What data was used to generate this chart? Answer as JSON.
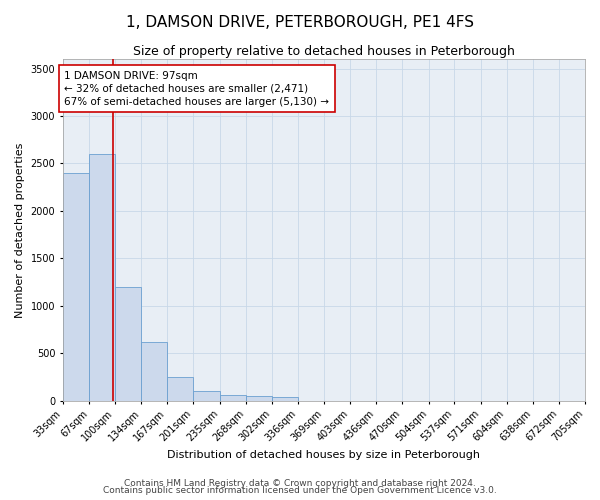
{
  "title": "1, DAMSON DRIVE, PETERBOROUGH, PE1 4FS",
  "subtitle": "Size of property relative to detached houses in Peterborough",
  "xlabel": "Distribution of detached houses by size in Peterborough",
  "ylabel": "Number of detached properties",
  "footnote1": "Contains HM Land Registry data © Crown copyright and database right 2024.",
  "footnote2": "Contains public sector information licensed under the Open Government Licence v3.0.",
  "bin_edges": [
    33,
    67,
    100,
    134,
    167,
    201,
    235,
    268,
    302,
    336,
    369,
    403,
    436,
    470,
    504,
    537,
    571,
    604,
    638,
    672,
    705
  ],
  "bar_heights": [
    2400,
    2600,
    1200,
    620,
    250,
    100,
    60,
    50,
    40,
    0,
    0,
    0,
    0,
    0,
    0,
    0,
    0,
    0,
    0,
    0
  ],
  "bar_color": "#ccd9ec",
  "bar_edgecolor": "#6a9fd0",
  "property_line_x": 97,
  "property_line_color": "#cc0000",
  "annotation_text": "1 DAMSON DRIVE: 97sqm\n← 32% of detached houses are smaller (2,471)\n67% of semi-detached houses are larger (5,130) →",
  "annotation_box_color": "#ffffff",
  "annotation_box_edgecolor": "#cc0000",
  "ylim": [
    0,
    3600
  ],
  "yticks": [
    0,
    500,
    1000,
    1500,
    2000,
    2500,
    3000,
    3500
  ],
  "grid_color": "#c8d8e8",
  "background_color": "#e8eef5",
  "title_fontsize": 11,
  "subtitle_fontsize": 9,
  "axis_label_fontsize": 8,
  "tick_fontsize": 7,
  "annotation_fontsize": 7.5,
  "footnote_fontsize": 6.5
}
